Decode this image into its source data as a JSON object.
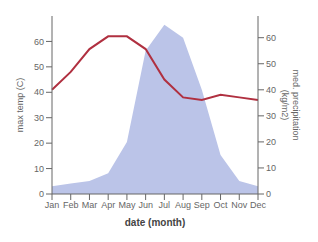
{
  "chart_data": {
    "type": "line",
    "xlabel": "date (month)",
    "ylabel": "max temp (C)",
    "y2label": "med. precipitation\n(kg/m2)",
    "categories": [
      "Jan",
      "Feb",
      "Mar",
      "Apr",
      "May",
      "Jun",
      "Jul",
      "Aug",
      "Sep",
      "Oct",
      "Nov",
      "Dec"
    ],
    "series": [
      {
        "type": "area",
        "color": "#bbc4e8",
        "axis": "y2",
        "values": [
          3,
          4,
          5,
          8,
          20,
          55,
          65,
          60,
          40,
          15,
          5,
          3
        ]
      },
      {
        "type": "line",
        "color": "#b03040",
        "values": [
          41,
          48,
          57,
          62,
          62,
          57,
          45,
          38,
          37,
          39,
          38,
          37
        ]
      }
    ],
    "ylim": [
      0,
      70
    ],
    "yticks": [
      0,
      10,
      20,
      30,
      40,
      50,
      60
    ],
    "y2lim": [
      0,
      68.33
    ],
    "y2ticks": [
      0,
      10,
      20,
      30,
      40,
      50,
      60
    ]
  }
}
